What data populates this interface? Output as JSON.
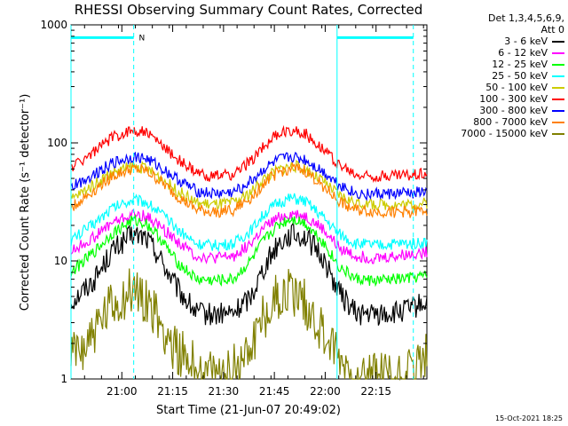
{
  "chart_data": {
    "type": "line",
    "title": "RHESSI Observing Summary Count Rates, Corrected",
    "xlabel": "Start Time (21-Jun-07 20:49:02)",
    "ylabel": "Corrected Count Rate (s⁻¹ detector⁻¹)",
    "yscale": "log",
    "ylim": [
      1,
      1000
    ],
    "y_ticks": [
      "1",
      "10",
      "100",
      "1000"
    ],
    "x_range_min": [
      -4,
      101
    ],
    "x_ticks": [
      {
        "label": "21:00",
        "min": 11
      },
      {
        "label": "21:15",
        "min": 26
      },
      {
        "label": "21:30",
        "min": 41
      },
      {
        "label": "21:45",
        "min": 56
      },
      {
        "label": "22:00",
        "min": 71
      },
      {
        "label": "22:15",
        "min": 86
      }
    ],
    "grid": false,
    "legend_header": [
      "Det 1,3,4,5,6,9,",
      "Att 0"
    ],
    "series": [
      {
        "name": "3 - 6 keV",
        "color": "#000000",
        "x": [
          -4,
          3,
          8,
          14,
          18,
          22,
          27,
          33,
          38,
          44,
          49,
          53,
          57,
          61,
          65,
          70,
          75,
          80,
          86,
          92,
          97,
          101
        ],
        "y": [
          4.5,
          7,
          12,
          16.5,
          16,
          11,
          6,
          3.6,
          3.5,
          3.6,
          5,
          9,
          14,
          17,
          16,
          11,
          5.5,
          3.6,
          3.5,
          3.6,
          4,
          4.5
        ]
      },
      {
        "name": "6 - 12 keV",
        "color": "#ff00ff",
        "x": [
          -4,
          3,
          8,
          14,
          18,
          22,
          27,
          33,
          38,
          44,
          49,
          53,
          57,
          61,
          65,
          70,
          75,
          80,
          86,
          92,
          97,
          101
        ],
        "y": [
          12,
          16,
          21,
          24.5,
          24,
          20,
          15,
          11,
          10.5,
          11,
          14,
          19,
          23,
          25,
          24,
          19,
          13,
          11,
          10.5,
          11,
          11.5,
          12
        ]
      },
      {
        "name": "12 - 25 keV",
        "color": "#00ff00",
        "x": [
          -4,
          3,
          8,
          14,
          18,
          22,
          27,
          33,
          38,
          44,
          49,
          53,
          57,
          61,
          65,
          70,
          75,
          80,
          86,
          92,
          97,
          101
        ],
        "y": [
          8,
          12,
          17,
          22,
          21,
          16,
          10,
          7,
          6.8,
          7,
          10,
          15,
          20,
          23,
          21,
          15,
          9,
          7,
          6.8,
          7,
          7.2,
          7.5
        ]
      },
      {
        "name": "25 - 50 keV",
        "color": "#00ffff",
        "x": [
          -4,
          3,
          8,
          14,
          18,
          22,
          27,
          33,
          38,
          44,
          49,
          53,
          57,
          61,
          65,
          70,
          75,
          80,
          86,
          92,
          97,
          101
        ],
        "y": [
          15,
          21,
          28,
          33,
          32,
          26,
          19,
          14,
          13.5,
          14,
          18,
          25,
          31,
          34,
          32,
          24,
          17,
          14,
          13.5,
          14,
          14,
          14.5
        ]
      },
      {
        "name": "50 - 100 keV",
        "color": "#cccc00",
        "x": [
          -4,
          3,
          8,
          14,
          18,
          22,
          27,
          33,
          38,
          44,
          49,
          53,
          57,
          61,
          65,
          70,
          75,
          80,
          86,
          92,
          97,
          101
        ],
        "y": [
          33,
          45,
          56,
          63,
          61,
          52,
          40,
          31,
          30,
          31,
          38,
          50,
          59,
          64,
          61,
          48,
          36,
          31,
          30,
          30,
          30,
          31
        ]
      },
      {
        "name": "100 - 300 keV",
        "color": "#ff0000",
        "x": [
          -4,
          3,
          8,
          14,
          18,
          22,
          27,
          33,
          38,
          44,
          49,
          53,
          57,
          61,
          65,
          70,
          75,
          80,
          86,
          92,
          97,
          101
        ],
        "y": [
          62,
          85,
          110,
          128,
          124,
          100,
          75,
          55,
          52,
          54,
          70,
          95,
          118,
          128,
          120,
          92,
          65,
          53,
          52,
          53,
          54,
          56
        ]
      },
      {
        "name": "300 - 800 keV",
        "color": "#0000ff",
        "x": [
          -4,
          3,
          8,
          14,
          18,
          22,
          27,
          33,
          38,
          44,
          49,
          53,
          57,
          61,
          65,
          70,
          75,
          80,
          86,
          92,
          97,
          101
        ],
        "y": [
          42,
          55,
          67,
          76,
          74,
          63,
          50,
          39,
          37,
          38,
          47,
          60,
          71,
          76,
          72,
          58,
          45,
          37,
          37,
          37,
          38,
          38
        ]
      },
      {
        "name": "800 - 7000 keV",
        "color": "#ff8000",
        "x": [
          -4,
          3,
          8,
          14,
          18,
          22,
          27,
          33,
          38,
          44,
          49,
          53,
          57,
          61,
          65,
          70,
          75,
          80,
          86,
          92,
          97,
          101
        ],
        "y": [
          28,
          40,
          52,
          60,
          58,
          48,
          36,
          27,
          26,
          27,
          34,
          46,
          56,
          61,
          58,
          44,
          32,
          27,
          26,
          26,
          26,
          27
        ]
      },
      {
        "name": "7000 - 15000 keV",
        "color": "#808000",
        "x": [
          -4,
          3,
          8,
          14,
          18,
          22,
          27,
          33,
          38,
          44,
          49,
          53,
          57,
          61,
          65,
          70,
          75,
          80,
          86,
          92,
          97,
          101
        ],
        "y": [
          1.5,
          2.5,
          4,
          5.5,
          5,
          3,
          1.8,
          1.2,
          1,
          1.2,
          2,
          3.5,
          5,
          5.5,
          4.5,
          2.5,
          1.5,
          1,
          1.1,
          1,
          1.2,
          1.5
        ]
      }
    ],
    "vertical_markers_min": [
      -4,
      14.5,
      74.5,
      97
    ],
    "bar_segments": [
      {
        "from_min": -4,
        "to_min": 14.5,
        "label": ""
      },
      {
        "from_min": 74.5,
        "to_min": 97,
        "label": ""
      }
    ],
    "bar_label": "N",
    "bar_label_min": 15,
    "bar_value": 780,
    "marker_color": "#00ffff"
  },
  "timestamp": "15-Oct-2021 18:25"
}
